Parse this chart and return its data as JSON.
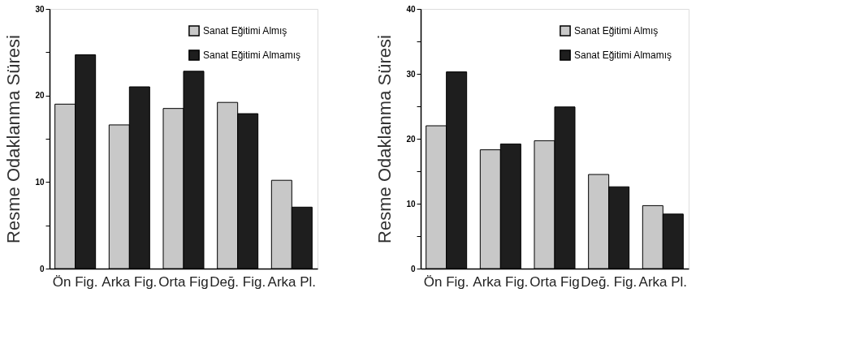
{
  "chart_data": [
    {
      "type": "bar",
      "ylabel": "Resme Odaklanma Süresi",
      "categories": [
        "Ön Fig.",
        "Arka Fig.",
        "Orta Fig",
        "Değ. Fig.",
        "Arka Pl."
      ],
      "series": [
        {
          "name": "Sanat Eğitimi Almış",
          "color": "#c8c8c8",
          "values": [
            19.0,
            16.6,
            18.5,
            19.2,
            10.2
          ]
        },
        {
          "name": "Sanat Eğitimi Almamış",
          "color": "#1e1e1e",
          "values": [
            24.7,
            21.0,
            22.8,
            17.9,
            7.1
          ]
        }
      ],
      "ylim": [
        0,
        30
      ],
      "yticks": [
        0,
        {
          "value": 5,
          "label": null
        },
        10,
        {
          "value": 15,
          "label": null
        },
        20,
        {
          "value": 25,
          "label": null
        },
        30
      ],
      "grid": false,
      "legend": "top right"
    },
    {
      "type": "bar",
      "ylabel": "Resme Odaklanma Süresi",
      "categories": [
        "Ön Fig.",
        "Arka Fig.",
        "Orta Fig",
        "Değ. Fig.",
        "Arka Pl."
      ],
      "series": [
        {
          "name": "Sanat Eğitimi Almış",
          "color": "#c8c8c8",
          "values": [
            22.0,
            18.3,
            19.7,
            14.5,
            9.7
          ]
        },
        {
          "name": "Sanat Eğitimi Almamış",
          "color": "#1e1e1e",
          "values": [
            30.3,
            19.2,
            24.9,
            12.6,
            8.4
          ]
        }
      ],
      "ylim": [
        0,
        40
      ],
      "yticks": [
        0,
        {
          "value": 5,
          "label": null
        },
        10,
        {
          "value": 15,
          "label": null
        },
        20,
        {
          "value": 25,
          "label": null
        },
        30,
        {
          "value": 35,
          "label": null
        },
        40
      ],
      "grid": false,
      "legend": "top right"
    }
  ]
}
